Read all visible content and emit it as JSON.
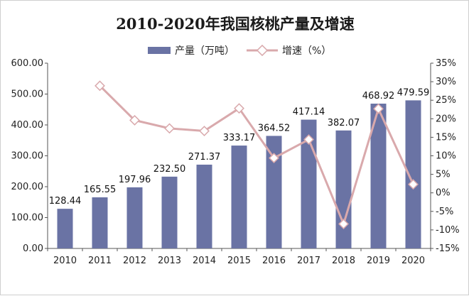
{
  "chart_data": {
    "type": "bar",
    "title": "2010-2020年我国核桃产量及增速",
    "categories": [
      "2010",
      "2011",
      "2012",
      "2013",
      "2014",
      "2015",
      "2016",
      "2017",
      "2018",
      "2019",
      "2020"
    ],
    "series": [
      {
        "name": "产量（万吨）",
        "type": "bar",
        "axis": "left",
        "values": [
          128.44,
          165.55,
          197.96,
          232.5,
          271.37,
          333.17,
          364.52,
          417.14,
          382.07,
          468.92,
          479.59
        ],
        "labels": [
          "128.44",
          "165.55",
          "197.96",
          "232.50",
          "271.37",
          "333.17",
          "364.52",
          "417.14",
          "382.07",
          "468.92",
          "479.59"
        ]
      },
      {
        "name": "增速（%）",
        "type": "line",
        "axis": "right",
        "values": [
          null,
          28.9,
          19.6,
          17.4,
          16.7,
          22.8,
          9.4,
          14.4,
          -8.4,
          22.7,
          2.3
        ]
      }
    ],
    "y_left": {
      "min": 0,
      "max": 600,
      "step": 100,
      "tick_labels": [
        "0.00",
        "100.00",
        "200.00",
        "300.00",
        "400.00",
        "500.00",
        "600.00"
      ]
    },
    "y_right": {
      "min": -15,
      "max": 35,
      "step": 5,
      "tick_labels": [
        "-15%",
        "-10%",
        "-5%",
        "0%",
        "5%",
        "10%",
        "15%",
        "20%",
        "25%",
        "30%",
        "35%"
      ]
    },
    "grid": false,
    "legend_position": "top-center",
    "colors": {
      "bar": "#6a73a4",
      "line": "#d9a9ac",
      "marker_fill": "#ffffff",
      "marker_stroke": "#d9a9ac"
    }
  }
}
